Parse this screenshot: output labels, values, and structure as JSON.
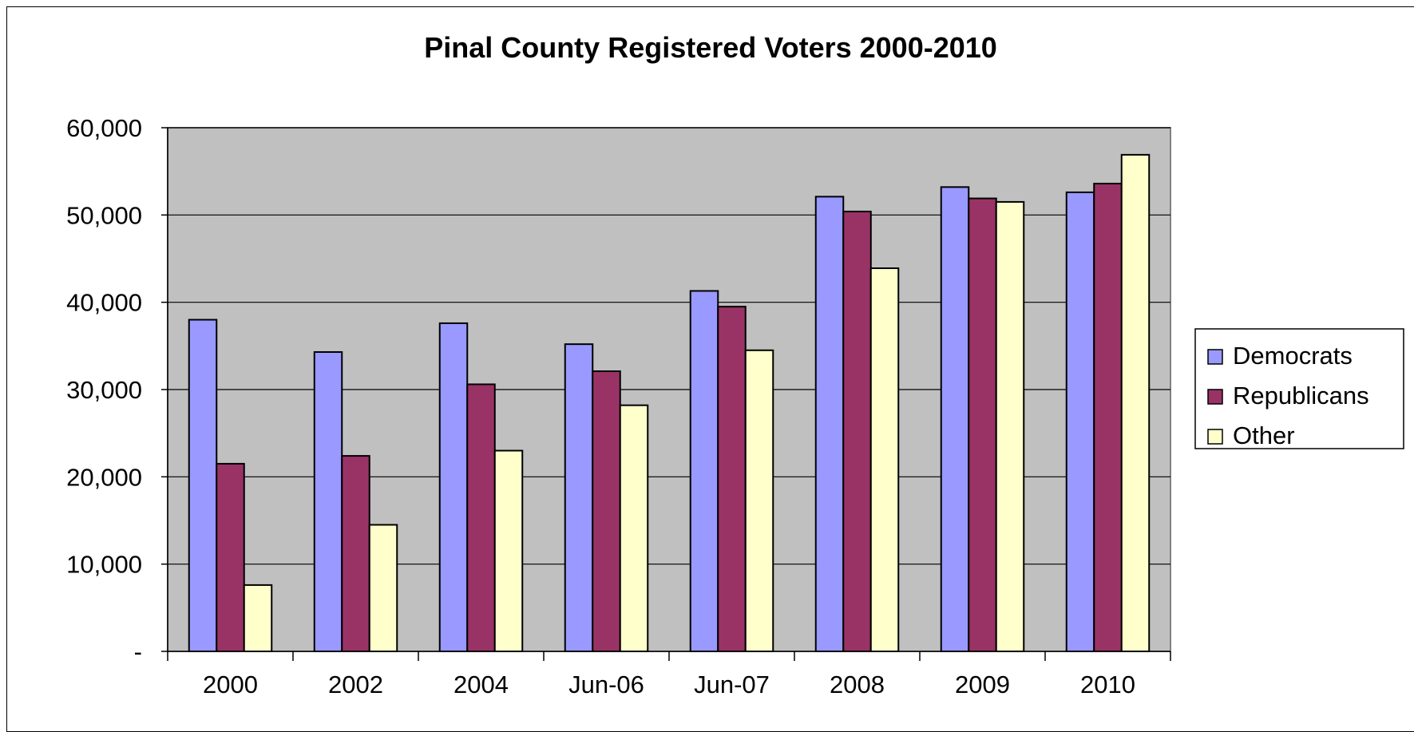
{
  "chart_data": {
    "type": "bar",
    "title": "Pinal County Registered Voters 2000-2010",
    "xlabel": "",
    "ylabel": "",
    "categories": [
      "2000",
      "2002",
      "2004",
      "Jun-06",
      "Jun-07",
      "2008",
      "2009",
      "2010"
    ],
    "series": [
      {
        "name": "Democrats",
        "color": "#9999FF",
        "values": [
          38000,
          34300,
          37600,
          35200,
          41300,
          52100,
          53200,
          52600
        ]
      },
      {
        "name": "Republicans",
        "color": "#993366",
        "values": [
          21500,
          22400,
          30600,
          32100,
          39500,
          50400,
          51900,
          53600
        ]
      },
      {
        "name": "Other",
        "color": "#FFFFCC",
        "values": [
          7600,
          14500,
          23000,
          28200,
          34500,
          43900,
          51500,
          56900
        ]
      }
    ],
    "ylim": [
      0,
      60000
    ],
    "yticks": [
      0,
      10000,
      20000,
      30000,
      40000,
      50000,
      60000
    ],
    "ytick_labels": [
      "-",
      "10,000",
      "20,000",
      "30,000",
      "40,000",
      "50,000",
      "60,000"
    ],
    "grid": true,
    "plot_background": "#C0C0C0",
    "legend_position": "right"
  }
}
